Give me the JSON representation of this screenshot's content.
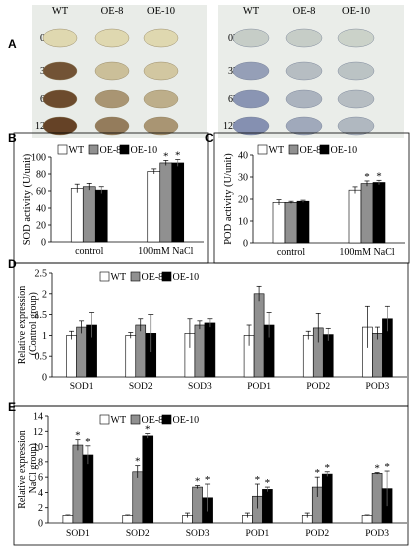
{
  "panels": {
    "A": "A",
    "B": "B",
    "C": "C",
    "D": "D",
    "E": "E"
  },
  "photo": {
    "col_labels": [
      "WT",
      "OE-8",
      "OE-10"
    ],
    "row_labels": [
      "0h",
      "3h",
      "6h",
      "12h"
    ],
    "colors": {
      "bg": "#e9ece8",
      "leaf_dab_light": "#e6e0b8",
      "leaf_dab_dark": "#5e3a1e",
      "leaf_nbt_light": "#d6dccd",
      "leaf_nbt_dark": "#6a76a8"
    }
  },
  "legend": [
    "WT",
    "OE-8",
    "OE-10"
  ],
  "colors": {
    "WT": "#ffffff",
    "OE-8": "#909090",
    "OE-10": "#000000"
  },
  "chart_data": [
    {
      "id": "B",
      "type": "bar",
      "ylabel": "SOD activity (U/unit)",
      "categories": [
        "control",
        "100mM NaCl"
      ],
      "ylim": [
        0,
        100
      ],
      "yticks": [
        0,
        20,
        40,
        60,
        80,
        100
      ],
      "series": [
        {
          "name": "WT",
          "values": [
            63,
            83
          ],
          "errors": [
            5,
            3
          ]
        },
        {
          "name": "OE-8",
          "values": [
            65,
            93
          ],
          "errors": [
            4,
            3
          ]
        },
        {
          "name": "OE-10",
          "values": [
            61,
            93
          ],
          "errors": [
            4,
            4
          ]
        }
      ],
      "significance": [
        [
          false,
          false,
          false
        ],
        [
          false,
          true,
          true
        ]
      ]
    },
    {
      "id": "C",
      "type": "bar",
      "ylabel": "POD activity (U/unit)",
      "categories": [
        "control",
        "100mM NaCl"
      ],
      "ylim": [
        0,
        40
      ],
      "yticks": [
        0,
        10,
        20,
        30,
        40
      ],
      "series": [
        {
          "name": "WT",
          "values": [
            18.5,
            24
          ],
          "errors": [
            1.2,
            1.5
          ]
        },
        {
          "name": "OE-8",
          "values": [
            18.5,
            27
          ],
          "errors": [
            0.5,
            1.2
          ]
        },
        {
          "name": "OE-10",
          "values": [
            19,
            27.5
          ],
          "errors": [
            0.5,
            1
          ]
        }
      ],
      "significance": [
        [
          false,
          false,
          false
        ],
        [
          false,
          true,
          true
        ]
      ]
    },
    {
      "id": "D",
      "type": "bar",
      "ylabel": "Relative expression (Control group)",
      "categories": [
        "SOD1",
        "SOD2",
        "SOD3",
        "POD1",
        "POD2",
        "POD3"
      ],
      "ylim": [
        0,
        2.5
      ],
      "yticks": [
        "0",
        "0.5",
        "1",
        "1.5",
        "2",
        "2.5"
      ],
      "series": [
        {
          "name": "WT",
          "values": [
            1.0,
            1.0,
            1.05,
            1.0,
            1.0,
            1.2
          ],
          "errors": [
            0.1,
            0.07,
            0.35,
            0.25,
            0.1,
            0.5
          ]
        },
        {
          "name": "OE-8",
          "values": [
            1.2,
            1.25,
            1.25,
            2.0,
            1.18,
            1.05
          ],
          "errors": [
            0.15,
            0.15,
            0.1,
            0.18,
            0.35,
            0.15
          ]
        },
        {
          "name": "OE-10",
          "values": [
            1.25,
            1.05,
            1.3,
            1.25,
            1.02,
            1.4
          ],
          "errors": [
            0.3,
            0.45,
            0.1,
            0.3,
            0.15,
            0.3
          ]
        }
      ],
      "significance": []
    },
    {
      "id": "E",
      "type": "bar",
      "ylabel": "Relative expression NaCl group)",
      "categories": [
        "SOD1",
        "SOD2",
        "SOD3",
        "POD1",
        "POD2",
        "POD3"
      ],
      "ylim": [
        0,
        14
      ],
      "yticks": [
        0,
        2,
        4,
        6,
        8,
        10,
        12,
        14
      ],
      "series": [
        {
          "name": "WT",
          "values": [
            1,
            1,
            1,
            1,
            1,
            1
          ],
          "errors": [
            0.05,
            0.05,
            0.3,
            0.3,
            0.3,
            0.05
          ]
        },
        {
          "name": "OE-8",
          "values": [
            10.2,
            6.7,
            4.7,
            3.5,
            4.7,
            6.5
          ],
          "errors": [
            0.7,
            0.8,
            0.2,
            1.6,
            1.3,
            0.1
          ]
        },
        {
          "name": "OE-10",
          "values": [
            8.9,
            11.4,
            3.3,
            4.4,
            6.4,
            4.5
          ],
          "errors": [
            1.2,
            0.3,
            1.8,
            0.3,
            0.3,
            2.3
          ]
        }
      ],
      "significance": [
        [
          false,
          true,
          true
        ],
        [
          false,
          true,
          true
        ],
        [
          false,
          true,
          true
        ],
        [
          false,
          true,
          true
        ],
        [
          false,
          true,
          true
        ],
        [
          false,
          true,
          true
        ]
      ]
    }
  ]
}
